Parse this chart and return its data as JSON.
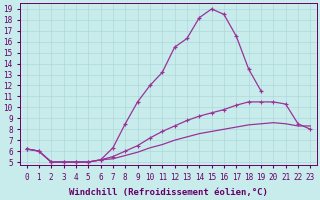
{
  "xlabel": "Windchill (Refroidissement éolien,°C)",
  "bg_color": "#c8ecec",
  "grid_color": "#b0d8d8",
  "line_color": "#993399",
  "x_min": 0,
  "x_max": 23,
  "y_min": 5,
  "y_max": 19,
  "line1_x": [
    0,
    1,
    2,
    3,
    4,
    5,
    6,
    7,
    8,
    9,
    10,
    11,
    12,
    13,
    14,
    15,
    16,
    17,
    18,
    19
  ],
  "line1_y": [
    6.2,
    6.0,
    5.0,
    5.0,
    5.0,
    5.0,
    5.2,
    6.3,
    8.5,
    10.5,
    12.0,
    13.2,
    15.5,
    16.3,
    18.2,
    19.0,
    18.5,
    16.5,
    13.5,
    11.5
  ],
  "line2_x": [
    0,
    1,
    2,
    3,
    4,
    5,
    6,
    7,
    8,
    9,
    10,
    11,
    12,
    13,
    14,
    15,
    16,
    17,
    18,
    19,
    20,
    21,
    22,
    23
  ],
  "line2_y": [
    6.2,
    6.0,
    5.0,
    5.0,
    5.0,
    5.0,
    5.2,
    5.5,
    6.0,
    6.5,
    7.2,
    7.8,
    8.3,
    8.8,
    9.2,
    9.5,
    9.8,
    10.2,
    10.5,
    10.5,
    10.5,
    10.3,
    8.5,
    8.0
  ],
  "line3_x": [
    0,
    1,
    2,
    3,
    4,
    5,
    6,
    7,
    8,
    9,
    10,
    11,
    12,
    13,
    14,
    15,
    16,
    17,
    18,
    19,
    20,
    21,
    22,
    23
  ],
  "line3_y": [
    6.2,
    6.0,
    5.0,
    5.0,
    5.0,
    5.0,
    5.2,
    5.3,
    5.6,
    5.9,
    6.3,
    6.6,
    7.0,
    7.3,
    7.6,
    7.8,
    8.0,
    8.2,
    8.4,
    8.5,
    8.6,
    8.5,
    8.3,
    8.3
  ],
  "yticks": [
    5,
    6,
    7,
    8,
    9,
    10,
    11,
    12,
    13,
    14,
    15,
    16,
    17,
    18,
    19
  ],
  "xticks": [
    0,
    1,
    2,
    3,
    4,
    5,
    6,
    7,
    8,
    9,
    10,
    11,
    12,
    13,
    14,
    15,
    16,
    17,
    18,
    19,
    20,
    21,
    22,
    23
  ],
  "xlabel_fontsize": 6.5,
  "tick_fontsize": 5.5
}
